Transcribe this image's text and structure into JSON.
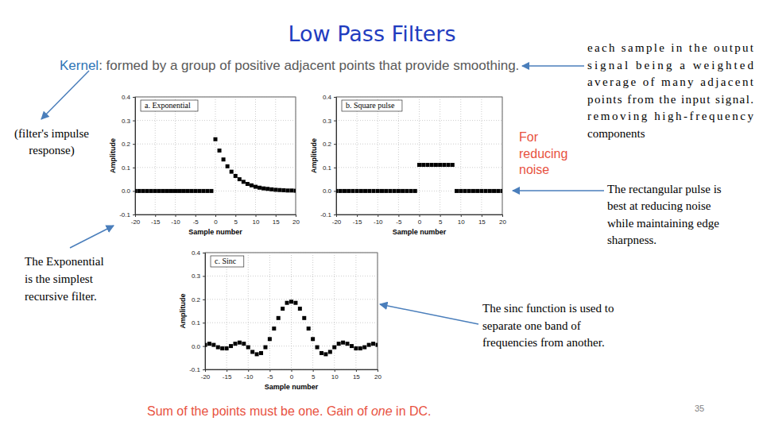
{
  "slide": {
    "title": "Low Pass Filters",
    "kernel_label": "Kernel",
    "kernel_text": ": formed by a group of positive adjacent points that provide smoothing.",
    "kernel_note": [
      "each sample in the output",
      "signal being a weighted",
      "average of many adjacent",
      "points from the input signal.",
      "removing high-frequency",
      "components"
    ],
    "impulse_note": [
      "(filter's impulse",
      "response)"
    ],
    "noise_note": [
      "For",
      "reducing",
      "noise"
    ],
    "rectangular_note": [
      "The rectangular pulse is",
      "best at reducing noise",
      "while maintaining edge",
      "sharpness."
    ],
    "exponential_note": [
      "The Exponential",
      "is the simplest",
      "recursive filter."
    ],
    "sinc_note": [
      "The sinc function is used to",
      "separate one band of",
      "frequencies from another."
    ],
    "footer": [
      "Sum of the points must be one. Gain of ",
      "one",
      " in DC."
    ],
    "page_number": 35
  },
  "chart_data": [
    {
      "type": "scatter",
      "title": "a. Exponential",
      "x_label": "Sample number",
      "y_label": "Amplitude",
      "x": [
        -20,
        -19,
        -18,
        -17,
        -16,
        -15,
        -14,
        -13,
        -12,
        -11,
        -10,
        -9,
        -8,
        -7,
        -6,
        -5,
        -4,
        -3,
        -2,
        -1,
        0,
        1,
        2,
        3,
        4,
        5,
        6,
        7,
        8,
        9,
        10,
        11,
        12,
        13,
        14,
        15,
        16,
        17,
        18,
        19,
        20
      ],
      "values": [
        0,
        0,
        0,
        0,
        0,
        0,
        0,
        0,
        0,
        0,
        0,
        0,
        0,
        0,
        0,
        0,
        0,
        0,
        0,
        0,
        0.22,
        0.172,
        0.134,
        0.105,
        0.082,
        0.064,
        0.05,
        0.039,
        0.03,
        0.024,
        0.018,
        0.014,
        0.011,
        0.009,
        0.007,
        0.005,
        0.004,
        0.003,
        0.002,
        0.002,
        0.001
      ],
      "xlim": [
        -20,
        20
      ],
      "ylim": [
        -0.1,
        0.4
      ],
      "xticks": [
        -20,
        -15,
        -10,
        -5,
        0,
        5,
        10,
        15,
        20
      ],
      "yticks": [
        -0.1,
        {
          "value": 0,
          "label": "0.0"
        },
        0.1,
        0.2,
        0.3,
        0.4
      ],
      "grid": true,
      "marker": "square",
      "color": "#000000"
    },
    {
      "type": "scatter",
      "title": "b. Square pulse",
      "x_label": "Sample number",
      "y_label": "Amplitude",
      "x": [
        -20,
        -19,
        -18,
        -17,
        -16,
        -15,
        -14,
        -13,
        -12,
        -11,
        -10,
        -9,
        -8,
        -7,
        -6,
        -5,
        -4,
        -3,
        -2,
        -1,
        0,
        1,
        2,
        3,
        4,
        5,
        6,
        7,
        8,
        9,
        10,
        11,
        12,
        13,
        14,
        15,
        16,
        17,
        18,
        19,
        20
      ],
      "values": [
        0,
        0,
        0,
        0,
        0,
        0,
        0,
        0,
        0,
        0,
        0,
        0,
        0,
        0,
        0,
        0,
        0,
        0,
        0,
        0,
        0.111,
        0.111,
        0.111,
        0.111,
        0.111,
        0.111,
        0.111,
        0.111,
        0.111,
        0,
        0,
        0,
        0,
        0,
        0,
        0,
        0,
        0,
        0,
        0,
        0
      ],
      "xlim": [
        -20,
        20
      ],
      "ylim": [
        -0.1,
        0.4
      ],
      "xticks": [
        -20,
        -15,
        -10,
        -5,
        0,
        5,
        10,
        15,
        20
      ],
      "yticks": [
        -0.1,
        {
          "value": 0,
          "label": "0.0"
        },
        0.1,
        0.2,
        0.3,
        0.4
      ],
      "grid": true,
      "marker": "square",
      "color": "#000000"
    },
    {
      "type": "scatter",
      "title": "c. Sinc",
      "x_label": "Sample number",
      "y_label": "Amplitude",
      "x": [
        -20,
        -19,
        -18,
        -17,
        -16,
        -15,
        -14,
        -13,
        -12,
        -11,
        -10,
        -9,
        -8,
        -7,
        -6,
        -5,
        -4,
        -3,
        -2,
        -1,
        0,
        1,
        2,
        3,
        4,
        5,
        6,
        7,
        8,
        9,
        10,
        11,
        12,
        13,
        14,
        15,
        16,
        17,
        18,
        19,
        20
      ],
      "values": [
        0.005,
        0.01,
        0.005,
        -0.005,
        -0.01,
        -0.01,
        0.0,
        0.01,
        0.015,
        0.01,
        -0.005,
        -0.025,
        -0.035,
        -0.03,
        -0.005,
        0.03,
        0.075,
        0.12,
        0.16,
        0.185,
        0.19,
        0.185,
        0.16,
        0.12,
        0.075,
        0.03,
        -0.005,
        -0.03,
        -0.035,
        -0.025,
        -0.005,
        0.01,
        0.015,
        0.01,
        0.0,
        -0.01,
        -0.01,
        -0.005,
        0.005,
        0.01,
        0.005
      ],
      "xlim": [
        -20,
        20
      ],
      "ylim": [
        -0.1,
        0.4
      ],
      "xticks": [
        -20,
        -15,
        -10,
        -5,
        0,
        5,
        10,
        15,
        20
      ],
      "yticks": [
        -0.1,
        {
          "value": 0,
          "label": "0.0"
        },
        0.1,
        0.2,
        0.3,
        0.4
      ],
      "grid": true,
      "marker": "square",
      "color": "#000000"
    }
  ]
}
